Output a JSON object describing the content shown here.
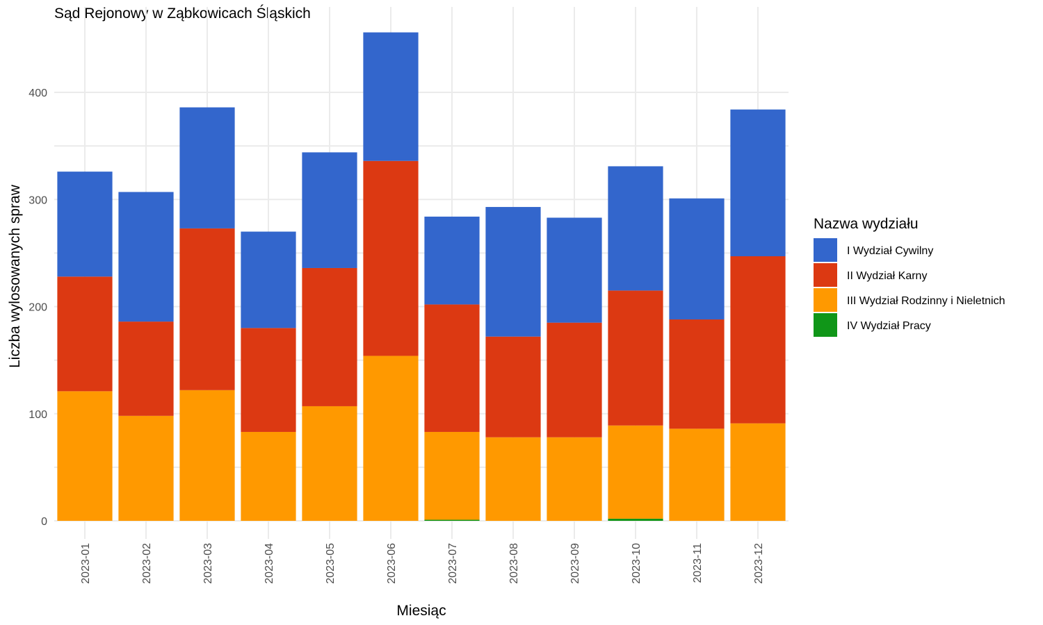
{
  "chart_data": {
    "type": "bar",
    "stacked": true,
    "title": "Sąd Rejonowy w Ząbkowicach Śląskich",
    "xlabel": "Miesiąc",
    "ylabel": "Liczba wylosowanych spraw",
    "ylim": [
      -17,
      470
    ],
    "yticks": [
      0,
      100,
      200,
      300,
      400
    ],
    "grid": true,
    "legend": {
      "title": "Nazwa wydziału",
      "placement": "right"
    },
    "categories": [
      "2023-01",
      "2023-02",
      "2023-03",
      "2023-04",
      "2023-05",
      "2023-06",
      "2023-07",
      "2023-08",
      "2023-09",
      "2023-10",
      "2023-11",
      "2023-12"
    ],
    "series": [
      {
        "name": "I Wydział Cywilny",
        "color": "#3366cc",
        "values": [
          98,
          121,
          113,
          90,
          108,
          120,
          82,
          121,
          98,
          116,
          113,
          137
        ]
      },
      {
        "name": "II Wydział Karny",
        "color": "#dc3912",
        "values": [
          107,
          88,
          151,
          97,
          129,
          182,
          119,
          94,
          107,
          126,
          102,
          156
        ]
      },
      {
        "name": "III Wydział Rodzinny i Nieletnich",
        "color": "#ff9900",
        "values": [
          121,
          98,
          122,
          83,
          107,
          154,
          82,
          78,
          78,
          87,
          86,
          91
        ]
      },
      {
        "name": "IV Wydział Pracy",
        "color": "#109618",
        "values": [
          0,
          0,
          0,
          0,
          0,
          0,
          1,
          0,
          0,
          2,
          0,
          0
        ]
      }
    ]
  }
}
